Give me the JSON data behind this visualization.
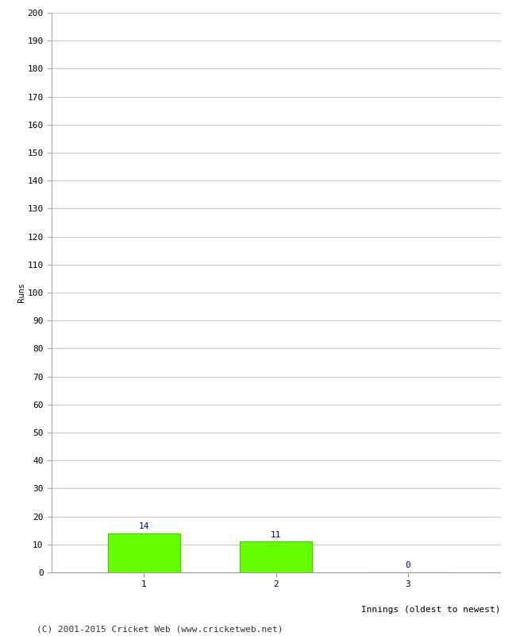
{
  "categories": [
    "1",
    "2",
    "3"
  ],
  "values": [
    14,
    11,
    0
  ],
  "bar_color": "#66ff00",
  "bar_edge_color": "#44cc00",
  "value_color": "#000080",
  "ylabel": "Runs",
  "xlabel": "Innings (oldest to newest)",
  "ylim": [
    0,
    200
  ],
  "ytick_step": 10,
  "background_color": "#ffffff",
  "grid_color": "#cccccc",
  "footer": "(C) 2001-2015 Cricket Web (www.cricketweb.net)",
  "value_fontsize": 8,
  "axis_fontsize": 8,
  "ylabel_fontsize": 7,
  "xlabel_fontsize": 8,
  "footer_fontsize": 8
}
